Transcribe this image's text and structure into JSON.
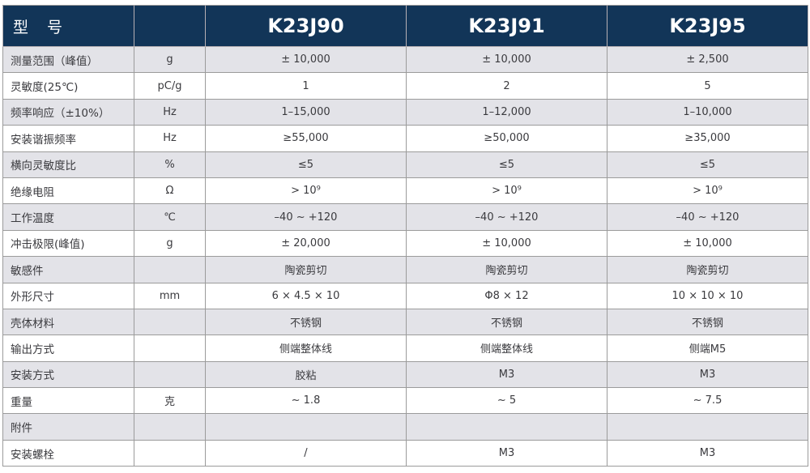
{
  "table": {
    "header": {
      "model_label": "型　号",
      "models": [
        "K23J90",
        "K23J91",
        "K23J95"
      ]
    },
    "rows": [
      {
        "label": "测量范围（峰值）",
        "unit": "g",
        "values": [
          "± 10,000",
          "± 10,000",
          "± 2,500"
        ]
      },
      {
        "label": "灵敏度(25℃)",
        "unit": "pC/g",
        "values": [
          "1",
          "2",
          "5"
        ]
      },
      {
        "label": "频率响应（±10%）",
        "unit": "Hz",
        "values": [
          "1–15,000",
          "1–12,000",
          "1–10,000"
        ]
      },
      {
        "label": "安装谐振频率",
        "unit": "Hz",
        "values": [
          "≥55,000",
          "≥50,000",
          "≥35,000"
        ]
      },
      {
        "label": "横向灵敏度比",
        "unit": "%",
        "values": [
          "≤5",
          "≤5",
          "≤5"
        ]
      },
      {
        "label": "绝缘电阻",
        "unit": "Ω",
        "values": [
          "> 10⁹",
          "> 10⁹",
          "> 10⁹"
        ]
      },
      {
        "label": "工作温度",
        "unit": "℃",
        "values": [
          "–40 ~ +120",
          "–40 ~ +120",
          "–40 ~ +120"
        ]
      },
      {
        "label": "冲击极限(峰值)",
        "unit": "g",
        "values": [
          "± 20,000",
          "± 10,000",
          "± 10,000"
        ]
      },
      {
        "label": "敏感件",
        "unit": "",
        "values": [
          "陶瓷剪切",
          "陶瓷剪切",
          "陶瓷剪切"
        ]
      },
      {
        "label": "外形尺寸",
        "unit": "mm",
        "values": [
          "6 × 4.5 × 10",
          "Φ8 × 12",
          "10 × 10 × 10"
        ]
      },
      {
        "label": "壳体材料",
        "unit": "",
        "values": [
          "不锈钢",
          "不锈钢",
          "不锈钢"
        ]
      },
      {
        "label": "输出方式",
        "unit": "",
        "values": [
          "侧端整体线",
          "侧端整体线",
          "侧端M5"
        ]
      },
      {
        "label": "安装方式",
        "unit": "",
        "values": [
          "胶粘",
          "M3",
          "M3"
        ]
      },
      {
        "label": "重量",
        "unit": "克",
        "values": [
          "~ 1.8",
          "~ 5",
          "~ 7.5"
        ]
      },
      {
        "label": "附件",
        "unit": "",
        "values": [
          "",
          "",
          ""
        ]
      },
      {
        "label": "安装螺栓",
        "unit": "",
        "values": [
          "/",
          "M3",
          "M3"
        ]
      }
    ],
    "colors": {
      "header_bg": "#123558",
      "header_text": "#ffffff",
      "row_alt_bg": "#e3e3e8",
      "border": "#9b9b9b",
      "text": "#3a3a3e"
    }
  }
}
